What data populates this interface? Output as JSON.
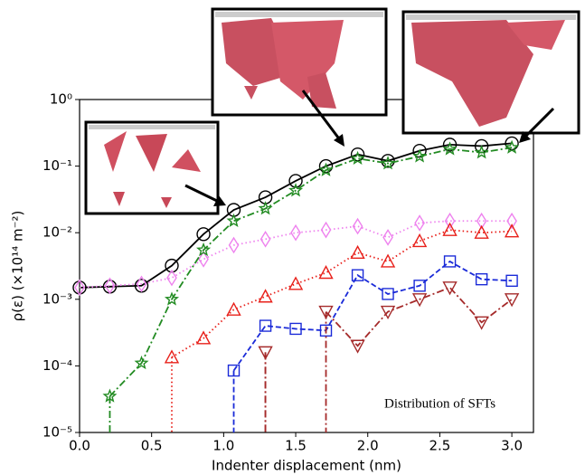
{
  "chart_data": {
    "type": "line",
    "xlabel": "Indenter displacement (nm)",
    "ylabel": "ρ(ε) (×10¹⁴ m⁻²)",
    "annotation": "Distribution of SFTs",
    "log_y": true,
    "x": [
      0,
      0.21,
      0.43,
      0.64,
      0.86,
      1.07,
      1.29,
      1.5,
      1.71,
      1.93,
      2.14,
      2.36,
      2.57,
      2.79,
      3.0
    ],
    "xlim": [
      0,
      3.15
    ],
    "ylim": [
      1e-05,
      1
    ],
    "xticks": [
      {
        "value": 0,
        "label": "0.0"
      },
      0.5,
      {
        "value": 1,
        "label": "1.0"
      },
      1.5,
      {
        "value": 2,
        "label": "2.0"
      },
      2.5,
      {
        "value": 3,
        "label": "3.0"
      }
    ],
    "yticks": [
      {
        "value": 1e-05,
        "label": "10⁻⁵"
      },
      {
        "value": 0.0001,
        "label": "10⁻⁴"
      },
      {
        "value": 0.001,
        "label": "10⁻³"
      },
      {
        "value": 0.01,
        "label": "10⁻²"
      },
      {
        "value": 0.1,
        "label": "10⁻¹"
      },
      {
        "value": 1,
        "label": "10⁰"
      }
    ],
    "series": [
      {
        "color": "#000000",
        "marker": "circle",
        "dash": "solid",
        "values": [
          0.0015,
          0.00155,
          0.0016,
          0.0032,
          0.0095,
          0.022,
          0.034,
          0.06,
          0.1,
          0.15,
          0.12,
          0.17,
          0.21,
          0.2,
          0.22
        ]
      },
      {
        "color": "#ee82ee",
        "marker": "diamond",
        "dash": "dotted",
        "values": [
          0.0015,
          0.0016,
          0.0017,
          0.0021,
          0.004,
          0.0065,
          0.008,
          0.01,
          0.011,
          0.0125,
          0.0085,
          0.014,
          0.015,
          0.015,
          0.015
        ]
      },
      {
        "color": "#228b22",
        "marker": "star",
        "dash": "dashdot",
        "values": [
          0,
          3.5e-05,
          0.00011,
          0.001,
          0.0055,
          0.015,
          0.023,
          0.043,
          0.087,
          0.13,
          0.11,
          0.14,
          0.18,
          0.16,
          0.19
        ]
      },
      {
        "color": "#e8201a",
        "marker": "triangle-up",
        "dash": "dotted",
        "values": [
          null,
          null,
          0,
          0.000135,
          0.00026,
          0.0007,
          0.0011,
          0.0017,
          0.0025,
          0.005,
          0.0037,
          0.0075,
          0.011,
          0.01,
          0.0105
        ]
      },
      {
        "color": "#1a2ad8",
        "marker": "square",
        "dash": "dashed",
        "values": [
          null,
          null,
          null,
          null,
          0,
          8.5e-05,
          0.0004,
          0.00036,
          0.00034,
          0.0023,
          0.0012,
          0.0016,
          0.0037,
          0.002,
          0.0019
        ]
      },
      {
        "color": "#a52a2a",
        "marker": "triangle-down",
        "dash": "dashdot",
        "values": [
          null,
          null,
          null,
          null,
          null,
          0,
          0.00016,
          0,
          0.00065,
          0.0002,
          0.00065,
          0.001,
          0.0015,
          0.00045,
          0.001
        ]
      }
    ]
  }
}
